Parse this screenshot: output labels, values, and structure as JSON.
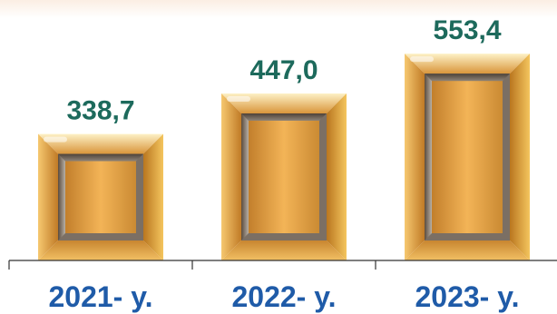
{
  "chart_data": {
    "type": "bar",
    "categories": [
      "2021- y.",
      "2022- y.",
      "2023- y."
    ],
    "values": [
      338.7,
      447.0,
      553.4
    ],
    "value_labels": [
      "338,7",
      "447,0",
      "553,4"
    ],
    "title": "",
    "xlabel": "",
    "ylabel": "",
    "ylim": [
      0,
      600
    ],
    "grid": false,
    "legend": "none"
  },
  "colors": {
    "bar_gold_light": "#fbe6ae",
    "bar_gold": "#e8a84a",
    "bar_gold_dark": "#a86a1c",
    "bar_bevel_dark": "#5a4a3a",
    "value_label": "#1d6a5c",
    "category_label": "#1f5ba8",
    "axis": "#333333"
  }
}
